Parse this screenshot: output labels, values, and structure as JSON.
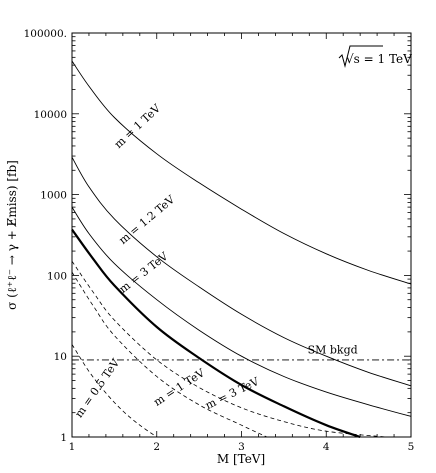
{
  "chart_data": {
    "type": "line",
    "xlabel": "M  [TeV]",
    "ylabel": "σ (ℓ⁺ℓ⁻ → γ + E̸miss) [fb]",
    "annotation": "√s  = 1 TeV",
    "xlim": [
      1,
      5
    ],
    "ylim": [
      1,
      100000
    ],
    "yscale": "log",
    "grid": false,
    "legend": "none",
    "x_ticks": [
      "1",
      "2",
      "3",
      "4",
      "5"
    ],
    "y_ticks": [
      "1",
      "10",
      "100",
      "1000",
      "10000",
      "100000."
    ],
    "series": [
      {
        "name": "m = 1 TeV",
        "style": "solid",
        "width": 0.9,
        "x": [
          1,
          1.2,
          1.5,
          2,
          2.5,
          3,
          3.5,
          4,
          4.5,
          5
        ],
        "y": [
          45000,
          22000,
          9000,
          3200,
          1400,
          660,
          330,
          185,
          115,
          78
        ]
      },
      {
        "name": "m = 1.2 TeV",
        "style": "solid",
        "width": 0.9,
        "x": [
          1,
          1.2,
          1.5,
          2,
          2.5,
          3,
          3.5,
          4,
          4.5,
          5
        ],
        "y": [
          2900,
          1250,
          500,
          170,
          72,
          33,
          17,
          10,
          6.3,
          4.3
        ]
      },
      {
        "name": "m = 3 TeV",
        "style": "solid",
        "width": 0.9,
        "x": [
          1,
          1.2,
          1.5,
          2,
          2.5,
          3,
          3.5,
          4,
          4.5,
          5
        ],
        "y": [
          700,
          330,
          140,
          50,
          21,
          10,
          5.6,
          3.6,
          2.5,
          1.8
        ]
      },
      {
        "name": "",
        "style": "solid",
        "width": 2.2,
        "x": [
          1,
          1.25,
          1.5,
          2,
          2.5,
          3,
          3.5,
          4,
          4.4
        ],
        "y": [
          370,
          160,
          75,
          23,
          9.5,
          4.4,
          2.4,
          1.4,
          1.0
        ]
      },
      {
        "name": "m = 3 TeV",
        "style": "dashed",
        "width": 0.8,
        "x": [
          1,
          1.25,
          1.5,
          2,
          2.5,
          3,
          3.5,
          4,
          4.7
        ],
        "y": [
          150,
          62,
          28,
          9,
          4.1,
          2.3,
          1.55,
          1.18,
          1.0
        ]
      },
      {
        "name": "m = 1 TeV",
        "style": "dashed",
        "width": 0.8,
        "x": [
          1,
          1.25,
          1.5,
          2,
          2.5,
          3,
          3.3
        ],
        "y": [
          110,
          42,
          18,
          5.6,
          2.5,
          1.4,
          1.0
        ]
      },
      {
        "name": "m = 0.5 TeV",
        "style": "dashed",
        "width": 0.8,
        "x": [
          1,
          1.2,
          1.4,
          1.6,
          1.8,
          2.0
        ],
        "y": [
          14,
          6.5,
          3.5,
          2.1,
          1.4,
          1.0
        ]
      },
      {
        "name": "SM bkgd",
        "style": "dashdot",
        "width": 0.9,
        "x": [
          1,
          5
        ],
        "y": [
          9,
          9
        ]
      }
    ],
    "labels": [
      {
        "text": "m = 1 TeV",
        "x": 1.55,
        "y": 3700,
        "angle": -43
      },
      {
        "text": "m = 1.2 TeV",
        "x": 1.6,
        "y": 240,
        "angle": -40
      },
      {
        "text": "m = 3 TeV",
        "x": 1.6,
        "y": 60,
        "angle": -38
      },
      {
        "text": "SM bkgd",
        "x": 3.78,
        "y": 10.8,
        "angle": 0
      },
      {
        "text": "m = 3 TeV",
        "x": 2.6,
        "y": 2.2,
        "angle": -26
      },
      {
        "text": "m = 1 TeV",
        "x": 2.0,
        "y": 2.4,
        "angle": -33
      },
      {
        "text": "m = 0.5 TeV",
        "x": 1.1,
        "y": 1.7,
        "angle": -55
      }
    ]
  }
}
